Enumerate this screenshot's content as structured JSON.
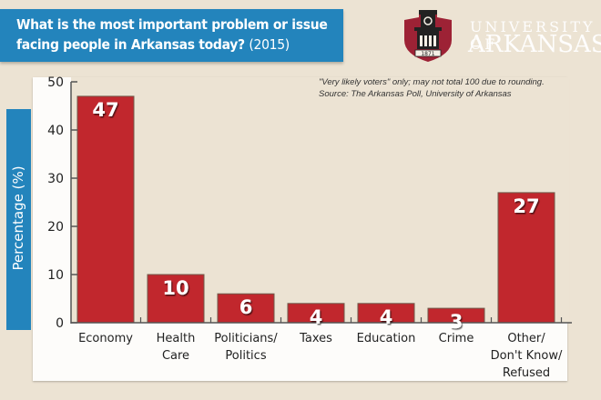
{
  "header": {
    "title_bold": "What is the most important problem or issue facing people in Arkansas today?",
    "title_year": "(2015)"
  },
  "logo": {
    "line1": "UNIVERSITY OF",
    "line2": "ARKANSAS",
    "seal_year": "1871",
    "colors": {
      "shield": "#9d2235",
      "text": "#ffffff"
    }
  },
  "notes": {
    "line1": "\"Very likely voters\" only; may not total 100 due to rounding.",
    "line2": "Source: The Arkansas Poll, University of Arkansas"
  },
  "colors": {
    "bar": "#c1272d",
    "accent": "#2384bc",
    "background": "#ece3d3"
  },
  "chart_data": {
    "type": "bar",
    "title": "What is the most important problem or issue facing people in Arkansas today? (2015)",
    "xlabel": "",
    "ylabel": "Percentage (%)",
    "ylim": [
      0,
      50
    ],
    "yticks": [
      0,
      10,
      20,
      30,
      40,
      50
    ],
    "grid": false,
    "categories": [
      [
        "Economy"
      ],
      [
        "Health",
        "Care"
      ],
      [
        "Politicians/",
        "Politics"
      ],
      [
        "Taxes"
      ],
      [
        "Education"
      ],
      [
        "Crime"
      ],
      [
        "Other/",
        "Don't Know/",
        "Refused"
      ]
    ],
    "values": [
      47,
      10,
      6,
      4,
      4,
      3,
      27
    ],
    "data_labels": [
      "47",
      "10",
      "6",
      "4",
      "4",
      "3",
      "27"
    ]
  }
}
